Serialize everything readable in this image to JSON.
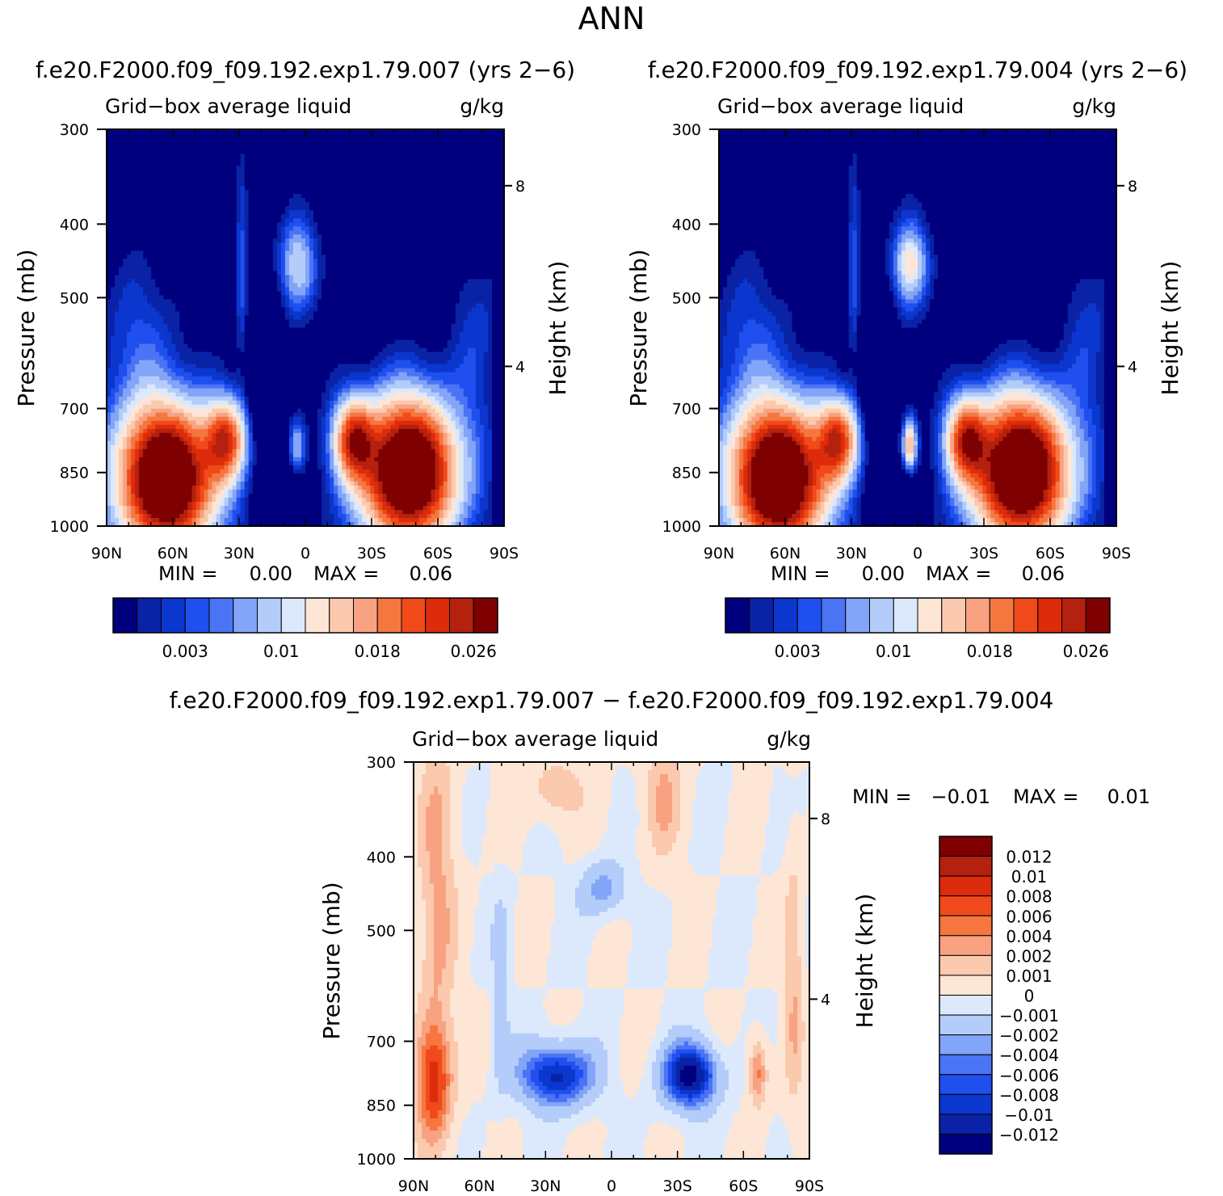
{
  "figure": {
    "title": "ANN"
  },
  "colors": {
    "seq": [
      "#00007f",
      "#0a23a6",
      "#0b37cf",
      "#1f4fee",
      "#4a74f4",
      "#83a5f7",
      "#b4ccfa",
      "#dce9fc",
      "#fde6d6",
      "#fbc9ad",
      "#f8a282",
      "#f5773f",
      "#f04a1a",
      "#dc2c0b",
      "#b4210e",
      "#7f0000"
    ],
    "diff": [
      "#00007f",
      "#0a23a6",
      "#0b37cf",
      "#1f4fee",
      "#4a74f4",
      "#83a5f7",
      "#b4ccfa",
      "#dce9fc",
      "#fde6d6",
      "#fbc9ad",
      "#f8a282",
      "#f5773f",
      "#f04a1a",
      "#dc2c0b",
      "#b4210e",
      "#7f0000"
    ]
  },
  "chart_data": [
    {
      "type": "heatmap",
      "case_title": "f.e20.F2000.f09_f09.192.exp1.79.007 (yrs 2−6)",
      "variable": "Grid−box average liquid",
      "units": "g/kg",
      "ylabel": "Pressure (mb)",
      "ylabel_right": "Height (km)",
      "x_ticks": [
        "90N",
        "60N",
        "30N",
        "0",
        "30S",
        "60S",
        "90S"
      ],
      "y_ticks": [
        "300",
        "400",
        "500",
        "700",
        "850",
        "1000"
      ],
      "y_ticks_right": [
        "8",
        "4"
      ],
      "ylim": [
        1000,
        300
      ],
      "stats": {
        "min_label": "MIN =",
        "min": "0.00",
        "max_label": "MAX =",
        "max": "0.06"
      },
      "colorbar_labels": [
        "0.003",
        "0.01",
        "0.018",
        "0.026"
      ],
      "variant": 0
    },
    {
      "type": "heatmap",
      "case_title": "f.e20.F2000.f09_f09.192.exp1.79.004 (yrs 2−6)",
      "variable": "Grid−box average liquid",
      "units": "g/kg",
      "ylabel": "Pressure (mb)",
      "ylabel_right": "Height (km)",
      "x_ticks": [
        "90N",
        "60N",
        "30N",
        "0",
        "30S",
        "60S",
        "90S"
      ],
      "y_ticks": [
        "300",
        "400",
        "500",
        "700",
        "850",
        "1000"
      ],
      "y_ticks_right": [
        "8",
        "4"
      ],
      "ylim": [
        1000,
        300
      ],
      "stats": {
        "min_label": "MIN =",
        "min": "0.00",
        "max_label": "MAX =",
        "max": "0.06"
      },
      "colorbar_labels": [
        "0.003",
        "0.01",
        "0.018",
        "0.026"
      ],
      "variant": 1
    },
    {
      "type": "heatmap",
      "case_title": "f.e20.F2000.f09_f09.192.exp1.79.007 − f.e20.F2000.f09_f09.192.exp1.79.004",
      "variable": "Grid−box average liquid",
      "units": "g/kg",
      "ylabel": "Pressure (mb)",
      "ylabel_right": "Height (km)",
      "x_ticks": [
        "90N",
        "60N",
        "30N",
        "0",
        "30S",
        "60S",
        "90S"
      ],
      "y_ticks": [
        "300",
        "400",
        "500",
        "700",
        "850",
        "1000"
      ],
      "y_ticks_right": [
        "8",
        "4"
      ],
      "ylim": [
        1000,
        300
      ],
      "stats": {
        "min_label": "MIN =",
        "min": "−0.01",
        "max_label": "MAX =",
        "max": "0.01"
      },
      "colorbar_labels": [
        "0.012",
        "0.01",
        "0.008",
        "0.006",
        "0.004",
        "0.002",
        "0.001",
        "0",
        "−0.001",
        "−0.002",
        "−0.004",
        "−0.006",
        "−0.008",
        "−0.01",
        "−0.012"
      ]
    }
  ]
}
